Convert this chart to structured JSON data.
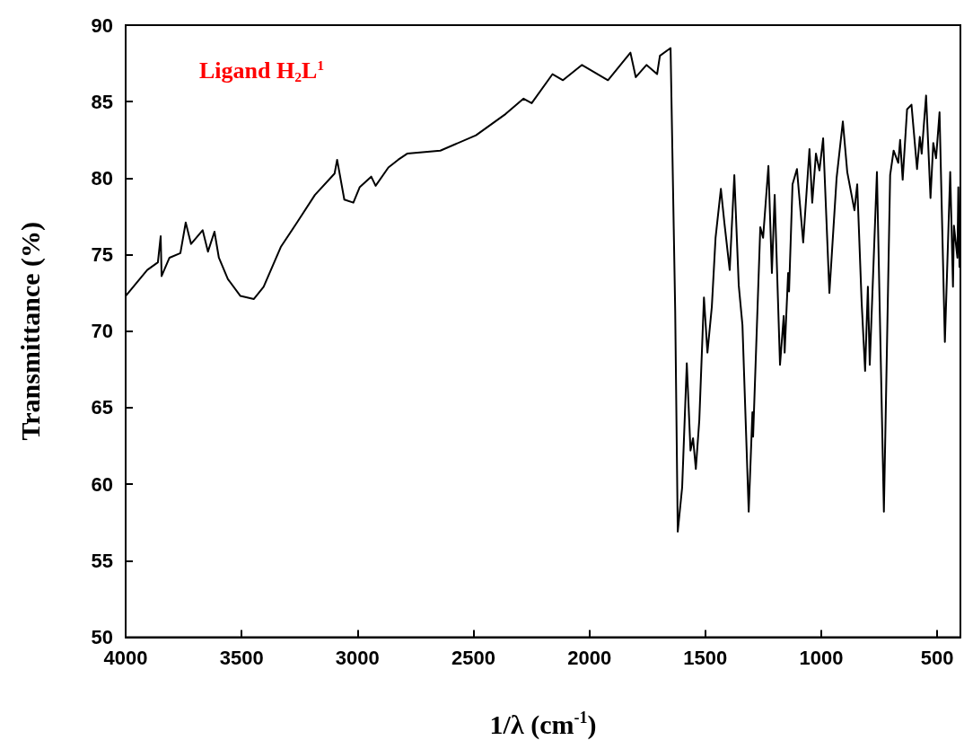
{
  "chart_data": {
    "type": "line",
    "xlabel": "1/λ (cm$^{-1}$)",
    "ylabel": "Transmittance (%)",
    "annotations": [
      "Ligand H$_{2}$L$^{1}$"
    ],
    "xlim": [
      4000,
      400
    ],
    "xticks": [
      4000,
      3500,
      3000,
      2500,
      2000,
      1500,
      1000,
      500
    ],
    "ylim": [
      50,
      90
    ],
    "yticks": [
      50,
      55,
      60,
      65,
      70,
      75,
      80,
      85,
      90
    ],
    "marker": "none",
    "line_style": "solid",
    "series": [
      {
        "color": "#000000",
        "x": [
          4000,
          3907,
          3861,
          3849,
          3845,
          3811,
          3764,
          3741,
          3718,
          3668,
          3645,
          3617,
          3598,
          3559,
          3505,
          3447,
          3405,
          3331,
          3261,
          3184,
          3099,
          3088,
          3057,
          3018,
          2991,
          2941,
          2922,
          2867,
          2825,
          2786,
          2643,
          2489,
          2361,
          2284,
          2249,
          2159,
          2114,
          2032,
          1920,
          1823,
          1800,
          1754,
          1708,
          1696,
          1650,
          1630,
          1619,
          1600,
          1580,
          1564,
          1553,
          1541,
          1526,
          1506,
          1491,
          1472,
          1456,
          1433,
          1418,
          1395,
          1375,
          1356,
          1340,
          1313,
          1297,
          1294,
          1263,
          1251,
          1228,
          1213,
          1201,
          1178,
          1162,
          1158,
          1143,
          1139,
          1124,
          1105,
          1078,
          1051,
          1039,
          1023,
          1008,
          992,
          965,
          934,
          907,
          888,
          857,
          845,
          826,
          811,
          799,
          791,
          760,
          730,
          703,
          688,
          668,
          660,
          649,
          630,
          611,
          587,
          575,
          567,
          548,
          529,
          517,
          505,
          490,
          467,
          444,
          432,
          428,
          413,
          409,
          404
        ],
        "values": [
          72.3,
          74.0,
          74.5,
          76.2,
          73.6,
          74.8,
          75.1,
          77.1,
          75.7,
          76.6,
          75.2,
          76.5,
          74.8,
          73.4,
          72.3,
          72.1,
          72.9,
          75.5,
          77.1,
          78.9,
          80.3,
          81.2,
          78.6,
          78.4,
          79.4,
          80.1,
          79.5,
          80.7,
          81.2,
          81.6,
          81.8,
          82.8,
          84.2,
          85.2,
          84.9,
          86.8,
          86.4,
          87.4,
          86.4,
          88.2,
          86.6,
          87.4,
          86.8,
          88.0,
          88.5,
          71.3,
          56.9,
          59.8,
          67.9,
          62.2,
          63.0,
          61.0,
          64.2,
          72.2,
          68.6,
          71.6,
          76.1,
          79.3,
          77.1,
          74.0,
          80.2,
          73.0,
          70.4,
          58.2,
          64.7,
          63.1,
          76.8,
          76.1,
          80.8,
          73.8,
          78.9,
          67.8,
          71.0,
          68.6,
          73.8,
          72.6,
          79.6,
          80.6,
          75.8,
          81.9,
          78.4,
          81.6,
          80.5,
          82.6,
          72.5,
          80.0,
          83.7,
          80.4,
          77.9,
          79.6,
          71.9,
          67.4,
          72.9,
          67.8,
          80.4,
          58.2,
          80.2,
          81.8,
          81.0,
          82.5,
          79.9,
          84.5,
          84.8,
          80.6,
          82.7,
          81.6,
          85.4,
          78.7,
          82.3,
          81.3,
          84.3,
          69.3,
          80.4,
          72.9,
          76.9,
          74.8,
          79.4,
          74.2
        ]
      }
    ]
  }
}
